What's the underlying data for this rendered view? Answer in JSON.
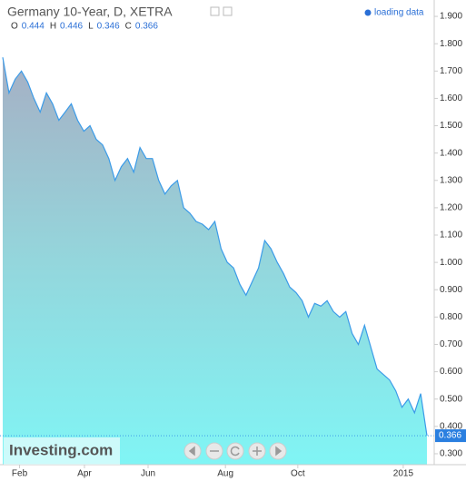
{
  "chart_data": {
    "type": "area",
    "title": "Germany 10-Year, D, XETRA",
    "status": "loading data",
    "ohlc": [
      {
        "label": "O",
        "value": 0.444
      },
      {
        "label": "H",
        "value": 0.446
      },
      {
        "label": "L",
        "value": 0.346
      },
      {
        "label": "C",
        "value": 0.366
      }
    ],
    "logo": "Investing.com",
    "series": [
      {
        "name": "Germany 10-Year",
        "color": "#3b9be8",
        "values": [
          1.75,
          1.62,
          1.67,
          1.7,
          1.66,
          1.6,
          1.55,
          1.62,
          1.58,
          1.52,
          1.55,
          1.58,
          1.52,
          1.48,
          1.5,
          1.45,
          1.43,
          1.38,
          1.3,
          1.35,
          1.38,
          1.33,
          1.42,
          1.38,
          1.38,
          1.3,
          1.25,
          1.28,
          1.3,
          1.2,
          1.18,
          1.15,
          1.14,
          1.12,
          1.15,
          1.05,
          1.0,
          0.98,
          0.92,
          0.88,
          0.93,
          0.98,
          1.08,
          1.05,
          1.0,
          0.96,
          0.91,
          0.89,
          0.86,
          0.8,
          0.85,
          0.84,
          0.86,
          0.82,
          0.8,
          0.82,
          0.74,
          0.7,
          0.77,
          0.69,
          0.61,
          0.59,
          0.57,
          0.53,
          0.47,
          0.5,
          0.45,
          0.52,
          0.366
        ]
      }
    ],
    "xlim": [
      0,
      68
    ],
    "xticks": [
      {
        "value": 2.7,
        "label": "Feb"
      },
      {
        "value": 13.1,
        "label": "Apr"
      },
      {
        "value": 23.3,
        "label": "Jun"
      },
      {
        "value": 35.7,
        "label": "Aug"
      },
      {
        "value": 47.3,
        "label": "Oct"
      },
      {
        "value": 64.2,
        "label": "2015"
      }
    ],
    "ylim": [
      0.26,
      1.96
    ],
    "yticks": [
      {
        "value": 0.3,
        "label": "0.300"
      },
      {
        "value": 0.4,
        "label": "0.400"
      },
      {
        "value": 0.5,
        "label": "0.500"
      },
      {
        "value": 0.6,
        "label": "0.600"
      },
      {
        "value": 0.7,
        "label": "0.700"
      },
      {
        "value": 0.8,
        "label": "0.800"
      },
      {
        "value": 0.9,
        "label": "0.900"
      },
      {
        "value": 1.0,
        "label": "1.000"
      },
      {
        "value": 1.1,
        "label": "1.100"
      },
      {
        "value": 1.2,
        "label": "1.200"
      },
      {
        "value": 1.3,
        "label": "1.300"
      },
      {
        "value": 1.4,
        "label": "1.400"
      },
      {
        "value": 1.5,
        "label": "1.500"
      },
      {
        "value": 1.6,
        "label": "1.600"
      },
      {
        "value": 1.7,
        "label": "1.700"
      },
      {
        "value": 1.8,
        "label": "1.800"
      },
      {
        "value": 1.9,
        "label": "1.900"
      }
    ],
    "grid": false
  }
}
